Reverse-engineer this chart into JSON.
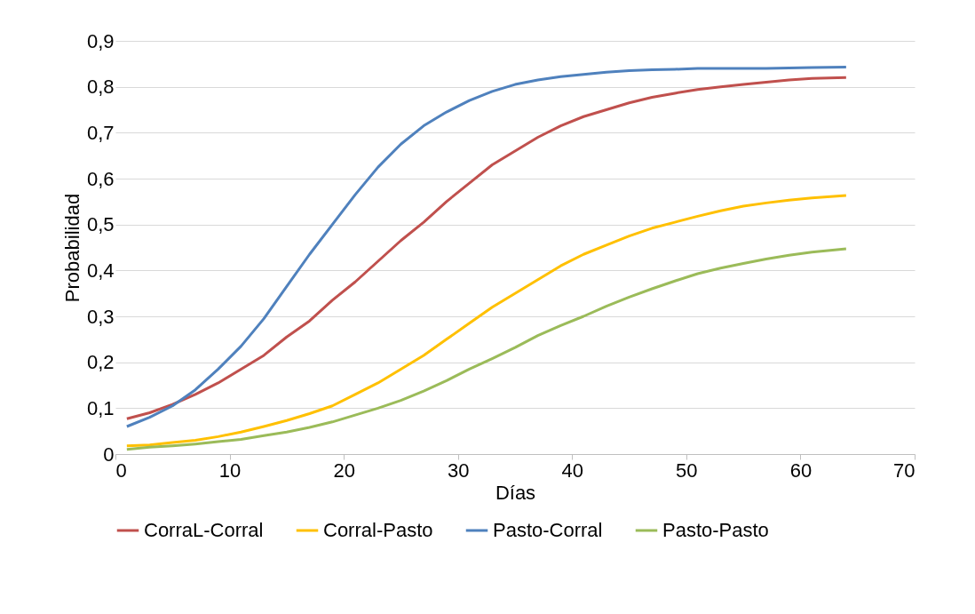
{
  "chart_data": {
    "type": "line",
    "xlabel": "Días",
    "ylabel": "Probabilidad",
    "x": [
      1,
      3,
      5,
      7,
      9,
      11,
      13,
      15,
      17,
      19,
      21,
      23,
      25,
      27,
      29,
      31,
      33,
      35,
      37,
      39,
      41,
      43,
      45,
      47,
      49,
      51,
      53,
      55,
      57,
      59,
      61,
      64
    ],
    "series": [
      {
        "name": "CorraL-Corral",
        "color": "#c0504d",
        "values": [
          0.077,
          0.09,
          0.108,
          0.13,
          0.155,
          0.185,
          0.215,
          0.255,
          0.29,
          0.335,
          0.375,
          0.42,
          0.465,
          0.505,
          0.55,
          0.59,
          0.63,
          0.66,
          0.69,
          0.715,
          0.735,
          0.75,
          0.765,
          0.777,
          0.786,
          0.794,
          0.8,
          0.805,
          0.81,
          0.815,
          0.818,
          0.82
        ]
      },
      {
        "name": "Corral-Pasto",
        "color": "#ffc000",
        "values": [
          0.018,
          0.02,
          0.025,
          0.03,
          0.038,
          0.048,
          0.06,
          0.073,
          0.088,
          0.105,
          0.13,
          0.155,
          0.185,
          0.215,
          0.25,
          0.285,
          0.32,
          0.35,
          0.38,
          0.41,
          0.435,
          0.455,
          0.475,
          0.492,
          0.505,
          0.518,
          0.53,
          0.54,
          0.547,
          0.553,
          0.558,
          0.563
        ]
      },
      {
        "name": "Pasto-Corral",
        "color": "#4f81bd",
        "values": [
          0.06,
          0.08,
          0.105,
          0.14,
          0.185,
          0.235,
          0.295,
          0.365,
          0.435,
          0.5,
          0.565,
          0.625,
          0.675,
          0.715,
          0.745,
          0.77,
          0.79,
          0.805,
          0.815,
          0.822,
          0.827,
          0.832,
          0.835,
          0.837,
          0.838,
          0.84,
          0.84,
          0.84,
          0.84,
          0.841,
          0.842,
          0.843
        ]
      },
      {
        "name": "Pasto-Pasto",
        "color": "#9bbb59",
        "values": [
          0.01,
          0.015,
          0.018,
          0.022,
          0.027,
          0.032,
          0.04,
          0.048,
          0.058,
          0.07,
          0.085,
          0.1,
          0.117,
          0.137,
          0.16,
          0.185,
          0.208,
          0.232,
          0.258,
          0.28,
          0.3,
          0.322,
          0.342,
          0.36,
          0.377,
          0.393,
          0.405,
          0.415,
          0.425,
          0.433,
          0.44,
          0.447
        ]
      }
    ],
    "xlim": [
      0,
      70
    ],
    "xticks": [
      0,
      10,
      20,
      30,
      40,
      50,
      60,
      70
    ],
    "ylim": [
      0,
      0.9
    ],
    "yticks": [
      0,
      {
        "value": 0.1,
        "label": "0,1"
      },
      {
        "value": 0.2,
        "label": "0,2"
      },
      {
        "value": 0.3,
        "label": "0,3"
      },
      {
        "value": 0.4,
        "label": "0,4"
      },
      {
        "value": 0.5,
        "label": "0,5"
      },
      {
        "value": 0.6,
        "label": "0,6"
      },
      {
        "value": 0.7,
        "label": "0,7"
      },
      {
        "value": 0.8,
        "label": "0,8"
      },
      {
        "value": 0.9,
        "label": "0,9"
      }
    ],
    "grid": "y",
    "legend": "bottom",
    "marker": "none",
    "line_style": "solid"
  }
}
